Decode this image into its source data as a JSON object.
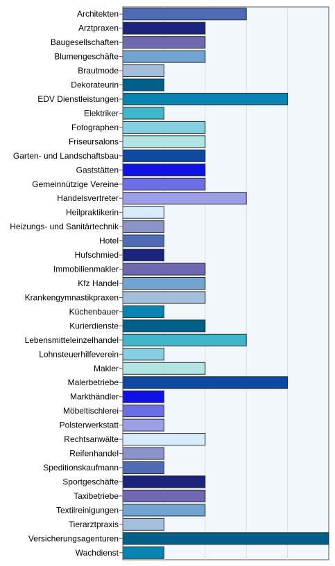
{
  "chart_data": {
    "type": "bar",
    "orientation": "horizontal",
    "title": "",
    "xlabel": "",
    "ylabel": "",
    "xlim": [
      0,
      5
    ],
    "grid": true,
    "categories": [
      "Architekten",
      "Arztpraxen",
      "Baugesellschaften",
      "Blumengeschäfte",
      "Brautmode",
      "Dekorateurin",
      "EDV Dienstleistungen",
      "Elektriker",
      "Fotographen",
      "Friseursalons",
      "Garten- und Landschaftsbau",
      "Gaststätten",
      "Gemeinnützige Vereine",
      "Handelsvertreter",
      "Heilpraktikerin",
      "Heizungs- und Sanitärtechnik",
      "Hotel",
      "Hufschmied",
      "Immobilienmakler",
      "Kfz Handel",
      "Krankengymnastikpraxen",
      "Küchenbauer",
      "Kurierdienste",
      "Lebensmitteleinzelhandel",
      "Lohnsteuerhilfeverein",
      "Makler",
      "Malerbetriebe",
      "Markthändler",
      "Möbeltischlerei",
      "Polsterwerkstatt",
      "Rechtsanwälte",
      "Reifenhandel",
      "Speditionskaufmann",
      "Sportgeschäfte",
      "Taxibetriebe",
      "Textilreinigungen",
      "Tierarztpraxis",
      "Versicherungsagenturen",
      "Wachdienst"
    ],
    "values": [
      3,
      2,
      2,
      2,
      1,
      1,
      4,
      1,
      2,
      2,
      2,
      2,
      2,
      3,
      1,
      1,
      1,
      1,
      2,
      2,
      2,
      1,
      2,
      3,
      1,
      2,
      4,
      1,
      1,
      1,
      2,
      1,
      1,
      2,
      2,
      2,
      1,
      5,
      1
    ],
    "colors": [
      "#4f6bb5",
      "#1a237e",
      "#6d68b0",
      "#72a4d2",
      "#a3bfdc",
      "#00608a",
      "#0884b3",
      "#3fb6ca",
      "#85cfe3",
      "#b3e4e4",
      "#0e49a1",
      "#0f11e6",
      "#6c6ee6",
      "#9c9ee6",
      "#d6ecfb",
      "#8b93c9",
      "#4f6bb5",
      "#1a237e",
      "#6d68b0",
      "#72a4d2",
      "#a3bfdc",
      "#0884b3",
      "#00608a",
      "#3fb6ca",
      "#85cfe3",
      "#b3e4e4",
      "#0e49a1",
      "#0f11e6",
      "#6c6ee6",
      "#9c9ee6",
      "#d6ecfb",
      "#8b93c9",
      "#4f6bb5",
      "#1a237e",
      "#6d68b0",
      "#72a4d2",
      "#a3bfdc",
      "#00608a",
      "#0884b3"
    ],
    "plot_background": "#f2f7fc",
    "grid_color": "#d8dde6",
    "border_color": "#555555"
  }
}
